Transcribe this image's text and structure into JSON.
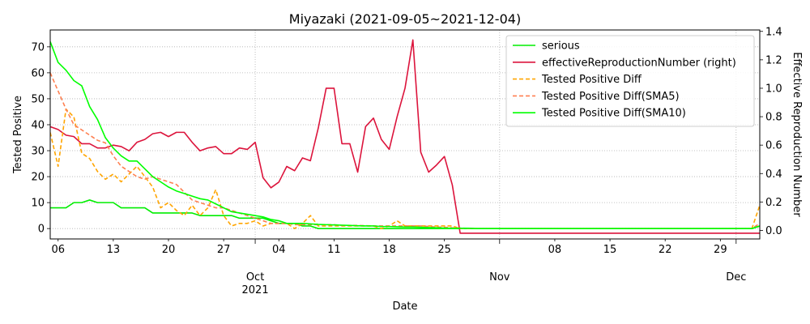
{
  "chart_data": {
    "type": "line",
    "title": "Miyazaki (2021-09-05~2021-12-04)",
    "xlabel": "Date",
    "ylabel": "Tested Positive",
    "y2label": "Effective Reproduction Number",
    "x_range": [
      "2021-09-05",
      "2021-12-04"
    ],
    "ylim": [
      -4,
      76.5
    ],
    "y2lim": [
      -0.06,
      1.41
    ],
    "grid": true,
    "legend_position": "top-right",
    "x_major_ticks": [
      {
        "date": "2021-10-01",
        "label": "Oct",
        "sublabel": "2021"
      },
      {
        "date": "2021-11-01",
        "label": "Nov",
        "sublabel": ""
      },
      {
        "date": "2021-12-01",
        "label": "Dec",
        "sublabel": ""
      }
    ],
    "x_minor_ticks": [
      {
        "date": "2021-09-06",
        "label": "06"
      },
      {
        "date": "2021-09-13",
        "label": "13"
      },
      {
        "date": "2021-09-20",
        "label": "20"
      },
      {
        "date": "2021-09-27",
        "label": "27"
      },
      {
        "date": "2021-10-04",
        "label": "04"
      },
      {
        "date": "2021-10-11",
        "label": "11"
      },
      {
        "date": "2021-10-18",
        "label": "18"
      },
      {
        "date": "2021-10-25",
        "label": "25"
      },
      {
        "date": "2021-11-08",
        "label": "08"
      },
      {
        "date": "2021-11-15",
        "label": "15"
      },
      {
        "date": "2021-11-22",
        "label": "22"
      },
      {
        "date": "2021-11-29",
        "label": "29"
      }
    ],
    "y_ticks": [
      0,
      10,
      20,
      30,
      40,
      50,
      60,
      70
    ],
    "y2_ticks": [
      {
        "value": 0.0,
        "label": "0.0"
      },
      {
        "value": 0.2,
        "label": "0.2"
      },
      {
        "value": 0.4,
        "label": "0.4"
      },
      {
        "value": 0.6,
        "label": "0.6"
      },
      {
        "value": 0.8,
        "label": "0.8"
      },
      {
        "value": 1.0,
        "label": "1.0"
      },
      {
        "value": 1.2,
        "label": "1.2"
      },
      {
        "value": 1.4,
        "label": "1.4"
      }
    ],
    "series": [
      {
        "name": "serious",
        "axis": "left",
        "color": "#00ee00",
        "dash": "solid",
        "start": "2021-09-05",
        "values": [
          8,
          8,
          8,
          10,
          10,
          11,
          10,
          10,
          10,
          8,
          8,
          8,
          8,
          6,
          6,
          6,
          6,
          6,
          6,
          5,
          5,
          5,
          5,
          5,
          4,
          4,
          4,
          4,
          3,
          2,
          2,
          2,
          1,
          1,
          0,
          0,
          0,
          0,
          0,
          0,
          0,
          0,
          0,
          0,
          0,
          0,
          0,
          0,
          0,
          0,
          0,
          0,
          0,
          0,
          0,
          0,
          0,
          0,
          0,
          0,
          0,
          0,
          0,
          0,
          0,
          0,
          0,
          0,
          0,
          0,
          0,
          0,
          0,
          0,
          0,
          0,
          0,
          0,
          0,
          0,
          0,
          0,
          0,
          0,
          0,
          0,
          0,
          0,
          0,
          0,
          1
        ]
      },
      {
        "name": "effectiveReproductionNumber (right)",
        "axis": "right",
        "color": "#dc143c",
        "dash": "solid",
        "start": "2021-09-05",
        "values": [
          0.73,
          0.71,
          0.67,
          0.66,
          0.61,
          0.61,
          0.58,
          0.58,
          0.6,
          0.59,
          0.56,
          0.62,
          0.64,
          0.68,
          0.69,
          0.66,
          0.69,
          0.69,
          0.62,
          0.56,
          0.58,
          0.59,
          0.54,
          0.54,
          0.58,
          0.57,
          0.62,
          0.37,
          0.3,
          0.34,
          0.45,
          0.42,
          0.51,
          0.49,
          0.72,
          1.0,
          1.0,
          0.61,
          0.61,
          0.41,
          0.73,
          0.79,
          0.64,
          0.57,
          0.8,
          1.0,
          1.34,
          0.55,
          0.41,
          0.46,
          0.52,
          0.32,
          -0.02,
          -0.02,
          -0.02,
          -0.02,
          -0.02,
          -0.02,
          -0.02,
          -0.02,
          -0.02,
          -0.02,
          -0.02,
          -0.02,
          -0.02,
          -0.02,
          -0.02,
          -0.02,
          -0.02,
          -0.02,
          -0.02,
          -0.02,
          -0.02,
          -0.02,
          -0.02,
          -0.02,
          -0.02,
          -0.02,
          -0.02,
          -0.02,
          -0.02,
          -0.02,
          -0.02,
          -0.02,
          -0.02,
          -0.02,
          -0.02,
          -0.02,
          -0.02,
          -0.02,
          -0.02
        ]
      },
      {
        "name": "Tested Positive Diff",
        "axis": "left",
        "color": "#ffa500",
        "dash": "dashed",
        "start": "2021-09-05",
        "values": [
          37,
          24,
          46,
          43,
          29,
          27,
          22,
          19,
          21,
          18,
          21,
          24,
          20,
          16,
          8,
          10,
          7,
          5,
          9,
          5,
          8,
          15,
          5,
          1,
          2,
          2,
          3,
          1,
          2,
          2,
          2,
          0,
          2,
          5,
          1,
          1,
          1,
          1,
          1,
          1,
          1,
          1,
          0,
          1,
          3,
          1,
          1,
          1,
          1,
          1,
          1,
          1,
          0,
          0,
          0,
          0,
          0,
          0,
          0,
          0,
          0,
          0,
          0,
          0,
          0,
          0,
          0,
          0,
          0,
          0,
          0,
          0,
          0,
          0,
          0,
          0,
          0,
          0,
          0,
          0,
          0,
          0,
          0,
          0,
          0,
          0,
          0,
          0,
          0,
          0,
          9
        ]
      },
      {
        "name": "Tested Positive Diff(SMA5)",
        "axis": "left",
        "color": "#ff7f50",
        "dash": "dashed",
        "start": "2021-09-05",
        "values": [
          60,
          53,
          46,
          40,
          38,
          36,
          34,
          33,
          28,
          24,
          22,
          20,
          19,
          20,
          19,
          18,
          17,
          14,
          11,
          10,
          9,
          8,
          8,
          7,
          6,
          5,
          4,
          3,
          2,
          2,
          2,
          1.5,
          1.5,
          1.5,
          1.5,
          1.5,
          1.5,
          1.2,
          1.2,
          1.2,
          1.1,
          1,
          1,
          1,
          1,
          1,
          1,
          1,
          0.8,
          0.6,
          0.5,
          0.3,
          0.2,
          0.1,
          0,
          0,
          0,
          0,
          0,
          0,
          0,
          0,
          0,
          0,
          0,
          0,
          0,
          0,
          0,
          0,
          0,
          0,
          0,
          0,
          0,
          0,
          0,
          0,
          0,
          0,
          0,
          0,
          0,
          0,
          0,
          0,
          0,
          0,
          0,
          0,
          2
        ]
      },
      {
        "name": "Tested Positive Diff(SMA10)",
        "axis": "left",
        "color": "#00ff00",
        "dash": "solid",
        "start": "2021-09-05",
        "values": [
          72,
          64,
          61,
          57,
          55,
          47,
          42,
          35,
          31,
          28,
          26,
          26,
          23,
          20,
          18,
          16,
          14.5,
          13.5,
          12.5,
          11.5,
          11,
          9.5,
          8,
          6.5,
          6,
          5.5,
          5,
          4.5,
          3.5,
          3,
          2,
          2,
          2,
          1.8,
          1.6,
          1.5,
          1.4,
          1.3,
          1.2,
          1.1,
          1,
          1,
          0.8,
          0.8,
          0.7,
          0.6,
          0.6,
          0.5,
          0.4,
          0.3,
          0.2,
          0.1,
          0.1,
          0.1,
          0,
          0,
          0,
          0,
          0,
          0,
          0,
          0,
          0,
          0,
          0,
          0,
          0,
          0,
          0,
          0,
          0,
          0,
          0,
          0,
          0,
          0,
          0,
          0,
          0,
          0,
          0,
          0,
          0,
          0,
          0,
          0,
          0,
          0,
          0,
          0,
          1
        ]
      }
    ]
  }
}
